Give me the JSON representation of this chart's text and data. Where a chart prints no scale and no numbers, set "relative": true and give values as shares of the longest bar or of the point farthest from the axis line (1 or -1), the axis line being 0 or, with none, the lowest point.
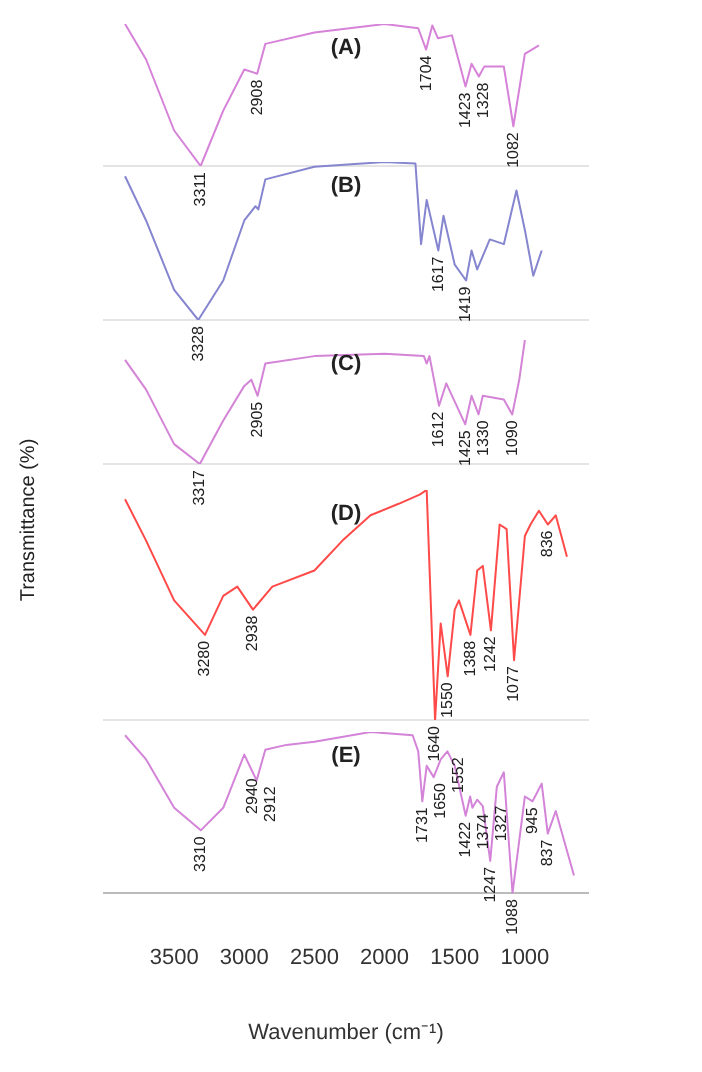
{
  "chart_data": [
    {
      "type": "line",
      "title": "(A)",
      "relative": true,
      "xlim": [
        4000,
        550
      ],
      "xticks": [
        3500,
        3000,
        2500,
        2000,
        1500,
        1000
      ],
      "tick_labels": false,
      "x": [
        3850,
        3700,
        3500,
        3311,
        3150,
        3000,
        2908,
        2850,
        2500,
        2000,
        1760,
        1704,
        1660,
        1620,
        1520,
        1423,
        1380,
        1328,
        1290,
        1150,
        1082,
        1000,
        900
      ],
      "series": [
        {
          "color": "#d682d8",
          "values": [
            1,
            0.75,
            0.25,
            0,
            0.39,
            0.68,
            0.65,
            0.86,
            0.94,
            1,
            0.97,
            0.82,
            0.99,
            0.9,
            0.92,
            0.56,
            0.72,
            0.63,
            0.7,
            0.7,
            0.28,
            0.79,
            0.85
          ]
        }
      ],
      "annotations": [
        {
          "text": "3311",
          "x": 3311,
          "y": 0
        },
        {
          "text": "2908",
          "x": 2908,
          "y": 0.65
        },
        {
          "text": "1704",
          "x": 1704,
          "y": 0.82
        },
        {
          "text": "1423",
          "x": 1423,
          "y": 0.56
        },
        {
          "text": "1328",
          "x": 1328,
          "y": 0.63
        },
        {
          "text": "1082",
          "x": 1082,
          "y": 0.28
        }
      ]
    },
    {
      "type": "line",
      "title": "(B)",
      "relative": true,
      "xlim": [
        4000,
        550
      ],
      "xticks": [
        3500,
        3000,
        2500,
        2000,
        1500,
        1000
      ],
      "tick_labels": false,
      "x": [
        3850,
        3700,
        3500,
        3328,
        3150,
        3000,
        2920,
        2900,
        2850,
        2500,
        2000,
        1780,
        1740,
        1700,
        1617,
        1580,
        1500,
        1419,
        1380,
        1340,
        1250,
        1150,
        1060,
        1000,
        940,
        880
      ],
      "series": [
        {
          "color": "#8585d0",
          "values": [
            0.91,
            0.63,
            0.19,
            0,
            0.25,
            0.63,
            0.72,
            0.7,
            0.89,
            0.97,
            1,
            0.99,
            0.48,
            0.76,
            0.44,
            0.66,
            0.35,
            0.25,
            0.44,
            0.32,
            0.51,
            0.48,
            0.82,
            0.57,
            0.28,
            0.44
          ]
        }
      ],
      "annotations": [
        {
          "text": "3328",
          "x": 3328,
          "y": 0
        },
        {
          "text": "1617",
          "x": 1617,
          "y": 0.44
        },
        {
          "text": "1419",
          "x": 1419,
          "y": 0.25
        }
      ]
    },
    {
      "type": "line",
      "title": "(C)",
      "ylabel": "Transmittance (%)",
      "relative": true,
      "xlim": [
        4000,
        550
      ],
      "xticks": [
        3500,
        3000,
        2500,
        2000,
        1500,
        1000
      ],
      "tick_labels": false,
      "x": [
        3850,
        3700,
        3500,
        3317,
        3150,
        3000,
        2950,
        2905,
        2850,
        2500,
        2000,
        1720,
        1700,
        1680,
        1612,
        1560,
        1425,
        1380,
        1330,
        1300,
        1150,
        1090,
        1040,
        1000
      ],
      "series": [
        {
          "color": "#d484d6",
          "values": [
            0.84,
            0.6,
            0.16,
            0,
            0.35,
            0.63,
            0.68,
            0.55,
            0.81,
            0.87,
            0.89,
            0.87,
            0.81,
            0.87,
            0.47,
            0.65,
            0.32,
            0.55,
            0.4,
            0.55,
            0.52,
            0.4,
            0.68,
            1
          ]
        }
      ],
      "annotations": [
        {
          "text": "3317",
          "x": 3317,
          "y": 0
        },
        {
          "text": "2905",
          "x": 2905,
          "y": 0.55
        },
        {
          "text": "1612",
          "x": 1612,
          "y": 0.47
        },
        {
          "text": "1425",
          "x": 1425,
          "y": 0.32
        },
        {
          "text": "1330",
          "x": 1330,
          "y": 0.4
        },
        {
          "text": "1090",
          "x": 1090,
          "y": 0.4
        }
      ]
    },
    {
      "type": "line",
      "title": "(D)",
      "relative": true,
      "xlim": [
        4000,
        550
      ],
      "xticks": [
        3500,
        3000,
        2500,
        2000,
        1500,
        1000
      ],
      "tick_labels": false,
      "x": [
        3850,
        3700,
        3500,
        3280,
        3150,
        3050,
        2938,
        2800,
        2500,
        2300,
        2100,
        1900,
        1750,
        1700,
        1640,
        1600,
        1550,
        1500,
        1470,
        1388,
        1340,
        1300,
        1242,
        1180,
        1130,
        1077,
        1000,
        960,
        900,
        836,
        780,
        700
      ],
      "series": [
        {
          "color": "#ff4a4a",
          "values": [
            0.96,
            0.78,
            0.52,
            0.37,
            0.54,
            0.58,
            0.48,
            0.58,
            0.65,
            0.78,
            0.89,
            0.94,
            0.98,
            1,
            0,
            0.42,
            0.19,
            0.48,
            0.52,
            0.37,
            0.65,
            0.67,
            0.39,
            0.85,
            0.83,
            0.26,
            0.8,
            0.85,
            0.91,
            0.85,
            0.89,
            0.71
          ]
        }
      ],
      "annotations": [
        {
          "text": "3280",
          "x": 3280,
          "y": 0.37
        },
        {
          "text": "2938",
          "x": 2938,
          "y": 0.48
        },
        {
          "text": "1640",
          "x": 1640,
          "y": 0
        },
        {
          "text": "1550",
          "x": 1550,
          "y": 0.19
        },
        {
          "text": "1388",
          "x": 1388,
          "y": 0.37
        },
        {
          "text": "1242",
          "x": 1242,
          "y": 0.39
        },
        {
          "text": "1077",
          "x": 1077,
          "y": 0.26
        },
        {
          "text": "836",
          "x": 836,
          "y": 0.85
        }
      ]
    },
    {
      "type": "line",
      "title": "(E)",
      "xlabel": "Wavenumber (cm⁻¹)",
      "relative": true,
      "xlim": [
        4000,
        550
      ],
      "xticks": [
        3500,
        3000,
        2500,
        2000,
        1500,
        1000
      ],
      "tick_labels": "x",
      "x": [
        3850,
        3700,
        3500,
        3310,
        3150,
        3000,
        2940,
        2912,
        2850,
        2700,
        2500,
        2100,
        1800,
        1760,
        1731,
        1700,
        1650,
        1600,
        1552,
        1500,
        1422,
        1390,
        1374,
        1340,
        1300,
        1247,
        1200,
        1150,
        1088,
        1000,
        945,
        880,
        837,
        780,
        650
      ],
      "series": [
        {
          "color": "#d484d8",
          "values": [
            0.98,
            0.83,
            0.53,
            0.39,
            0.53,
            0.86,
            0.75,
            0.7,
            0.89,
            0.92,
            0.94,
            1,
            0.98,
            0.88,
            0.57,
            0.79,
            0.72,
            0.83,
            0.88,
            0.79,
            0.48,
            0.6,
            0.53,
            0.58,
            0.54,
            0.2,
            0.66,
            0.75,
            0,
            0.6,
            0.57,
            0.68,
            0.37,
            0.51,
            0.11
          ]
        }
      ],
      "annotations": [
        {
          "text": "3310",
          "x": 3310,
          "y": 0.39
        },
        {
          "text": "2940",
          "x": 2940,
          "y": 0.75
        },
        {
          "text": "2912",
          "x": 2912,
          "y": 0.7
        },
        {
          "text": "1731",
          "x": 1731,
          "y": 0.57
        },
        {
          "text": "1650",
          "x": 1650,
          "y": 0.72
        },
        {
          "text": "1552",
          "x": 1552,
          "y": 0.88
        },
        {
          "text": "1422",
          "x": 1422,
          "y": 0.48
        },
        {
          "text": "1374",
          "x": 1374,
          "y": 0.53
        },
        {
          "text": "1327",
          "x": 1327,
          "y": 0.58
        },
        {
          "text": "1247",
          "x": 1247,
          "y": 0.2
        },
        {
          "text": "1088",
          "x": 1088,
          "y": 0
        },
        {
          "text": "945",
          "x": 945,
          "y": 0.57
        },
        {
          "text": "837",
          "x": 837,
          "y": 0.37
        }
      ]
    }
  ]
}
